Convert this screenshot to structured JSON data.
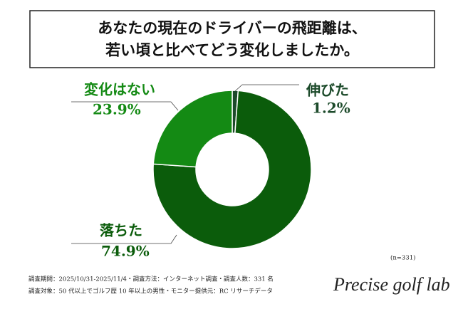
{
  "chart_data": {
    "type": "pie",
    "donut": true,
    "title": [
      "あなたの現在のドライバーの飛距離は、",
      "若い頃と比べてどう変化しましたか。"
    ],
    "categories": [
      "伸びた",
      "落ちた",
      "変化はない"
    ],
    "values": [
      1.2,
      74.9,
      23.9
    ],
    "value_labels": [
      "1.2%",
      "74.9%",
      "23.9%"
    ],
    "colors": [
      "#1c4a2a",
      "#0b5c0b",
      "#148a14"
    ],
    "n_note": "(n=331)",
    "notes": [
      "調査期間：2025/10/31-2025/11/4・調査方法：インターネット調査・調査人数：331 名",
      "調査対象：50 代以上でゴルフ歴 10 年以上の男性・モニター提供元：RC リサーチデータ"
    ],
    "logo": "Precise golf lab"
  }
}
